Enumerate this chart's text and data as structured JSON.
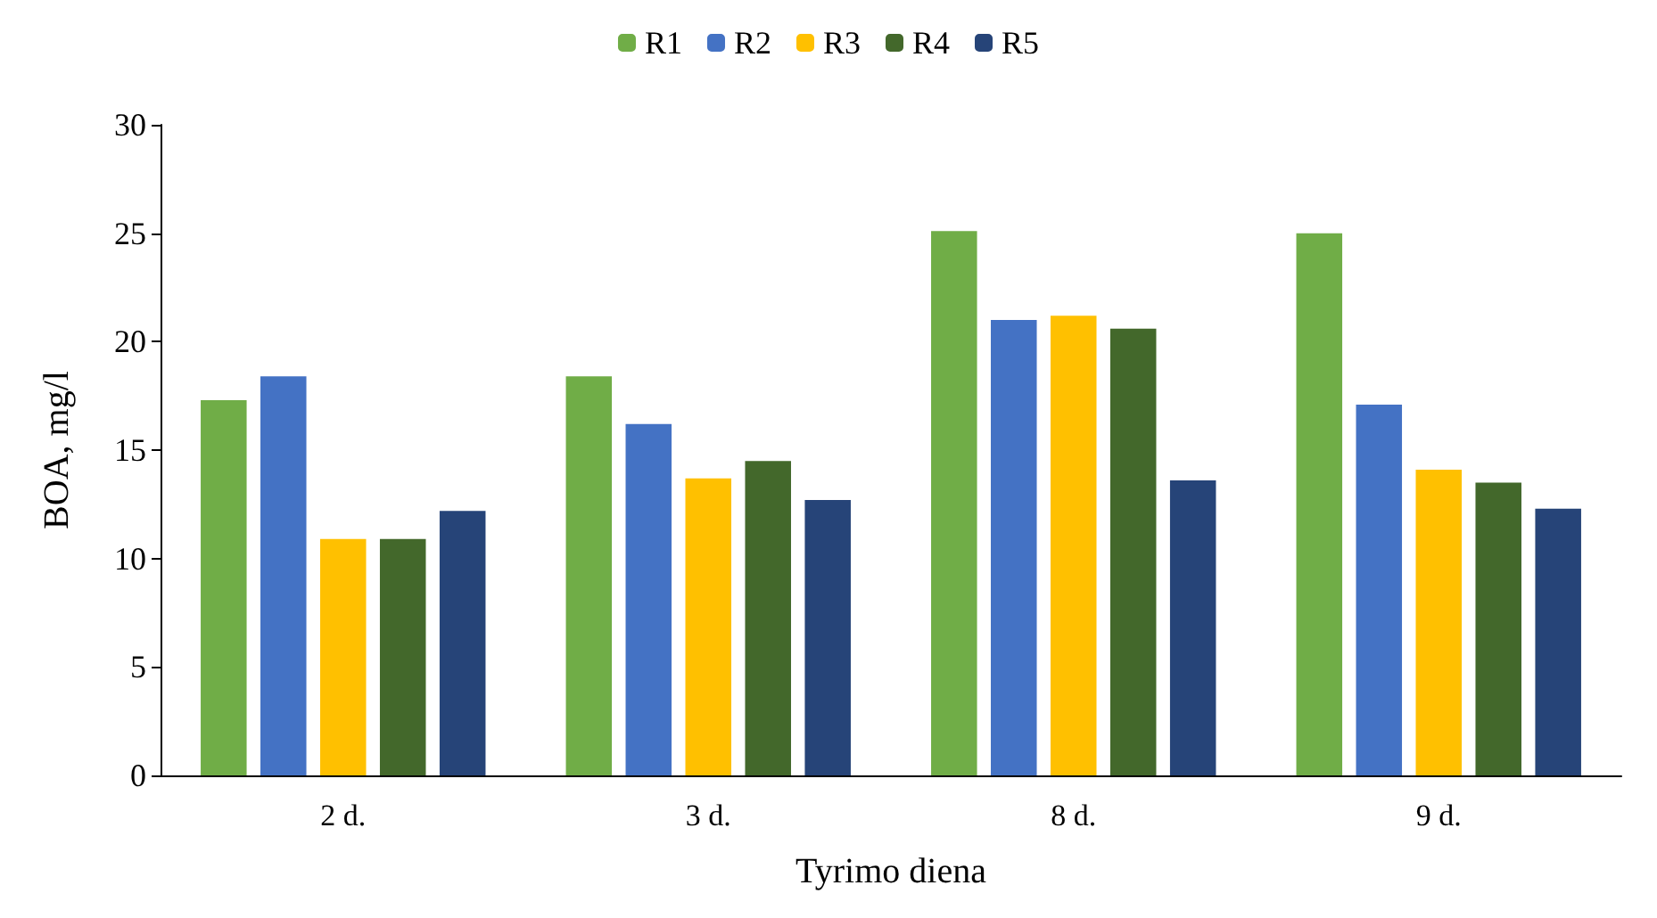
{
  "chart_data": {
    "type": "bar",
    "xlabel": "Tyrimo diena",
    "ylabel": "BOA, mg/l",
    "categories": [
      "2 d.",
      "3 d.",
      "8 d.",
      "9 d."
    ],
    "series": [
      {
        "name": "R1",
        "color": "#70ad47",
        "values": [
          17.3,
          18.4,
          25.1,
          25.0
        ]
      },
      {
        "name": "R2",
        "color": "#4472c4",
        "values": [
          18.4,
          16.2,
          21.0,
          17.1
        ]
      },
      {
        "name": "R3",
        "color": "#ffc000",
        "values": [
          10.9,
          13.7,
          21.2,
          14.1
        ]
      },
      {
        "name": "R4",
        "color": "#43682b",
        "values": [
          10.9,
          14.5,
          20.6,
          13.5
        ]
      },
      {
        "name": "R5",
        "color": "#264478",
        "values": [
          12.2,
          12.7,
          13.6,
          12.3
        ]
      }
    ],
    "ylim": [
      0,
      30
    ],
    "yticks": [
      0,
      5,
      10,
      15,
      20,
      25,
      30
    ],
    "grid": false,
    "legend": "top"
  }
}
